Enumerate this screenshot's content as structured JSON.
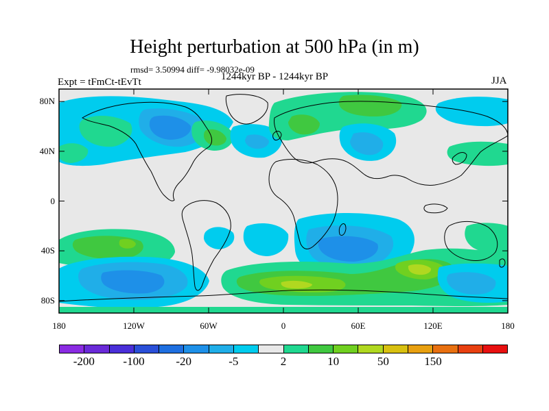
{
  "title": "Height perturbation at 500 hPa (in m)",
  "rmsd_line": "rmsd= 3.50994 diff= -9.98032e-09",
  "experiment": "Expt = tFmCt-tEvTt",
  "period": "1244kyr BP - 1244kyr BP",
  "season": "JJA",
  "map": {
    "projection": "cylindrical-equidistant",
    "lon_range": [
      -180,
      180
    ],
    "lat_range": [
      -90,
      90
    ],
    "lat_ticks": [
      {
        "value": 80,
        "label": "80N"
      },
      {
        "value": 40,
        "label": "40N"
      },
      {
        "value": 0,
        "label": "0"
      },
      {
        "value": -40,
        "label": "40S"
      },
      {
        "value": -80,
        "label": "80S"
      }
    ],
    "lon_ticks": [
      {
        "value": -180,
        "label": "180"
      },
      {
        "value": -120,
        "label": "120W"
      },
      {
        "value": -60,
        "label": "60W"
      },
      {
        "value": 0,
        "label": "0"
      },
      {
        "value": 60,
        "label": "60E"
      },
      {
        "value": 120,
        "label": "120E"
      },
      {
        "value": 180,
        "label": "180"
      }
    ],
    "background_color": "#e8e8e8"
  },
  "colorbar": {
    "colors": [
      "#8a2be2",
      "#6a2ad8",
      "#4a2fd8",
      "#2a4fd8",
      "#1e6fe0",
      "#1e90e8",
      "#20aee8",
      "#00ccee",
      "#e8e8e8",
      "#20d890",
      "#40c840",
      "#70d020",
      "#b0d820",
      "#d8c010",
      "#e8a010",
      "#e87010",
      "#e84010",
      "#e81010"
    ],
    "labels": [
      {
        "text": "-200",
        "after_cell": 1
      },
      {
        "text": "-100",
        "after_cell": 3
      },
      {
        "text": "-20",
        "after_cell": 5
      },
      {
        "text": "-5",
        "after_cell": 7
      },
      {
        "text": "2",
        "after_cell": 9
      },
      {
        "text": "10",
        "after_cell": 11
      },
      {
        "text": "50",
        "after_cell": 13
      },
      {
        "text": "150",
        "after_cell": 15
      }
    ]
  }
}
